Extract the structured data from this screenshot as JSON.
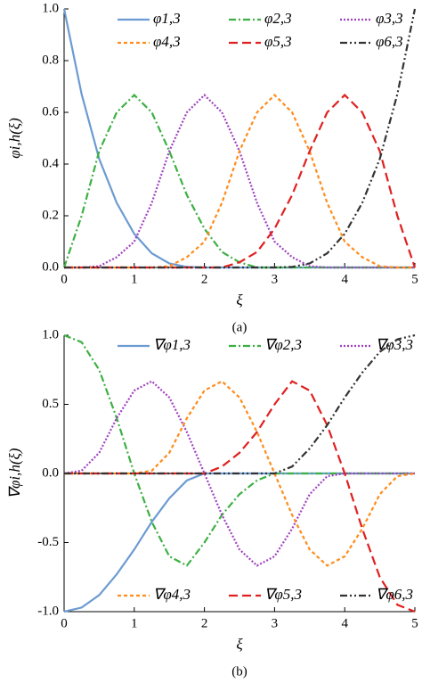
{
  "chart_data": [
    {
      "type": "line",
      "caption": "(a)",
      "xlabel": "ξ",
      "ylabel": "φi,h(ξ)",
      "x": [
        0,
        0.25,
        0.5,
        0.75,
        1,
        1.25,
        1.5,
        1.75,
        2,
        2.25,
        2.5,
        2.75,
        3,
        3.25,
        3.5,
        3.75,
        4,
        4.25,
        4.5,
        4.75,
        5
      ],
      "xlim": [
        0,
        5
      ],
      "xticks": [
        0,
        1,
        2,
        3,
        4,
        5
      ],
      "ylim": [
        0,
        1
      ],
      "yticks": [
        {
          "value": 0,
          "label": "0.0"
        },
        0.2,
        0.4,
        0.6,
        0.8,
        {
          "value": 1,
          "label": "1.0"
        }
      ],
      "legend": "top",
      "series": [
        {
          "name": "φ1,3",
          "color": "#6c9bd2",
          "dash": "solid",
          "values": [
            1,
            0.67,
            0.42,
            0.25,
            0.13,
            0.055,
            0.016,
            0.002,
            0,
            0,
            0,
            0,
            0,
            0,
            0,
            0,
            0,
            0,
            0,
            0,
            0
          ]
        },
        {
          "name": "φ2,3",
          "color": "#3cb043",
          "dash": "dash-dot",
          "values": [
            0,
            0.2,
            0.45,
            0.6,
            0.667,
            0.6,
            0.45,
            0.28,
            0.15,
            0.06,
            0.02,
            0,
            0,
            0,
            0,
            0,
            0,
            0,
            0,
            0,
            0
          ]
        },
        {
          "name": "φ3,3",
          "color": "#a040c0",
          "dash": "dot",
          "values": [
            0,
            0,
            0.005,
            0.04,
            0.1,
            0.25,
            0.45,
            0.6,
            0.667,
            0.6,
            0.45,
            0.25,
            0.1,
            0.04,
            0.005,
            0,
            0,
            0,
            0,
            0,
            0
          ]
        },
        {
          "name": "φ4,3",
          "color": "#ff8c1a",
          "dash": "short-dash",
          "values": [
            0,
            0,
            0,
            0,
            0,
            0,
            0.005,
            0.04,
            0.1,
            0.25,
            0.45,
            0.6,
            0.667,
            0.6,
            0.45,
            0.25,
            0.1,
            0.04,
            0.005,
            0,
            0
          ]
        },
        {
          "name": "φ5,3",
          "color": "#e02020",
          "dash": "long-dash",
          "values": [
            0,
            0,
            0,
            0,
            0,
            0,
            0,
            0,
            0,
            0,
            0.02,
            0.06,
            0.15,
            0.28,
            0.45,
            0.6,
            0.667,
            0.6,
            0.45,
            0.2,
            0
          ]
        },
        {
          "name": "φ6,3",
          "color": "#333333",
          "dash": "dash-dot-dot",
          "values": [
            0,
            0,
            0,
            0,
            0,
            0,
            0,
            0,
            0,
            0,
            0,
            0,
            0,
            0.002,
            0.016,
            0.055,
            0.13,
            0.25,
            0.42,
            0.67,
            1
          ]
        }
      ]
    },
    {
      "type": "line",
      "caption": "(b)",
      "xlabel": "ξ",
      "ylabel": "∇φi,h(ξ)",
      "x": [
        0,
        0.25,
        0.5,
        0.75,
        1,
        1.25,
        1.5,
        1.75,
        2,
        2.25,
        2.5,
        2.75,
        3,
        3.25,
        3.5,
        3.75,
        4,
        4.25,
        4.5,
        4.75,
        5
      ],
      "xlim": [
        0,
        5
      ],
      "xticks": [
        0,
        1,
        2,
        3,
        4,
        5
      ],
      "ylim": [
        -1,
        1
      ],
      "yticks": [
        {
          "value": -1,
          "label": "-1.0"
        },
        -0.5,
        {
          "value": 0,
          "label": "0.0"
        },
        0.5,
        {
          "value": 1,
          "label": "1.0"
        }
      ],
      "zero_line": true,
      "legend": "top-bottom",
      "series": [
        {
          "name": "∇φ1,3",
          "color": "#6c9bd2",
          "dash": "solid",
          "values": [
            -1,
            -0.97,
            -0.88,
            -0.73,
            -0.55,
            -0.35,
            -0.18,
            -0.05,
            0,
            0,
            0,
            0,
            0,
            0,
            0,
            0,
            0,
            0,
            0,
            0,
            0
          ]
        },
        {
          "name": "∇φ2,3",
          "color": "#3cb043",
          "dash": "dash-dot",
          "values": [
            1,
            0.95,
            0.75,
            0.4,
            0,
            -0.35,
            -0.6,
            -0.667,
            -0.5,
            -0.3,
            -0.15,
            -0.05,
            0,
            0,
            0,
            0,
            0,
            0,
            0,
            0,
            0
          ]
        },
        {
          "name": "∇φ3,3",
          "color": "#a040c0",
          "dash": "dot",
          "values": [
            0,
            0.02,
            0.15,
            0.4,
            0.6,
            0.667,
            0.55,
            0.3,
            0,
            -0.3,
            -0.55,
            -0.667,
            -0.6,
            -0.4,
            -0.15,
            -0.02,
            0,
            0,
            0,
            0,
            0
          ]
        },
        {
          "name": "∇φ4,3",
          "color": "#ff8c1a",
          "dash": "short-dash",
          "values": [
            0,
            0,
            0,
            0,
            0,
            0.02,
            0.15,
            0.4,
            0.6,
            0.667,
            0.55,
            0.3,
            0,
            -0.3,
            -0.55,
            -0.667,
            -0.6,
            -0.4,
            -0.15,
            -0.02,
            0
          ]
        },
        {
          "name": "∇φ5,3",
          "color": "#e02020",
          "dash": "long-dash",
          "values": [
            0,
            0,
            0,
            0,
            0,
            0,
            0,
            0,
            0,
            0.05,
            0.15,
            0.3,
            0.5,
            0.667,
            0.6,
            0.35,
            0,
            -0.4,
            -0.75,
            -0.95,
            -1
          ]
        },
        {
          "name": "∇φ6,3",
          "color": "#333333",
          "dash": "dash-dot-dot",
          "values": [
            0,
            0,
            0,
            0,
            0,
            0,
            0,
            0,
            0,
            0,
            0,
            0,
            0,
            0.05,
            0.18,
            0.35,
            0.55,
            0.73,
            0.88,
            0.97,
            1
          ]
        }
      ]
    }
  ]
}
